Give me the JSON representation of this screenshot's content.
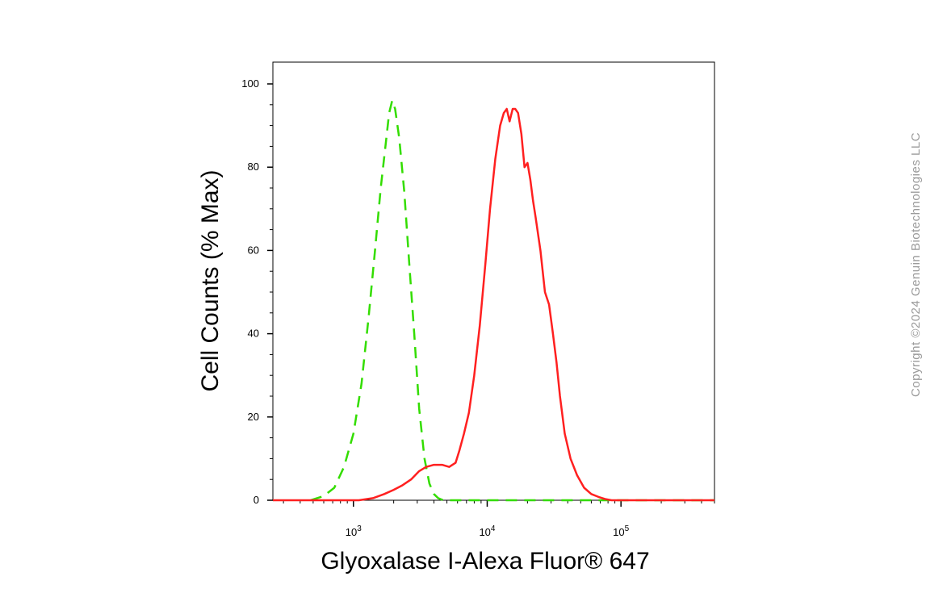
{
  "chart_data": {
    "type": "line",
    "title": "",
    "xlabel": "Glyoxalase I-Alexa Fluor® 647",
    "ylabel": "Cell Counts (% Max)",
    "x_scale": "log",
    "xlim": [
      250,
      500000
    ],
    "ylim": [
      0,
      105
    ],
    "y_ticks": [
      0,
      20,
      40,
      60,
      80,
      100
    ],
    "x_ticks": [
      {
        "value": 1000,
        "base": "10",
        "exp": "3"
      },
      {
        "value": 10000,
        "base": "10",
        "exp": "4"
      },
      {
        "value": 100000,
        "base": "10",
        "exp": "5"
      }
    ],
    "grid": false,
    "series": [
      {
        "color": "#33dd00",
        "dash": "dashed",
        "x": [
          480,
          600,
          720,
          850,
          1000,
          1150,
          1300,
          1450,
          1600,
          1750,
          1850,
          1950,
          2050,
          2200,
          2400,
          2600,
          2850,
          3100,
          3400,
          3700,
          4000,
          4300,
          4700,
          5200,
          6000,
          10000,
          50000,
          500000
        ],
        "y": [
          0,
          1,
          3,
          8,
          16,
          28,
          44,
          60,
          75,
          86,
          93,
          96,
          94,
          87,
          74,
          58,
          40,
          22,
          10,
          4,
          1.5,
          0.5,
          0,
          0,
          0,
          0,
          0,
          0
        ]
      },
      {
        "color": "#ff2020",
        "dash": "solid",
        "x": [
          250,
          900,
          1100,
          1400,
          1700,
          2000,
          2300,
          2700,
          3100,
          3500,
          4000,
          4600,
          5200,
          5800,
          6200,
          6700,
          7300,
          8000,
          8800,
          9700,
          10500,
          11500,
          12500,
          13300,
          14000,
          14700,
          15500,
          16200,
          17000,
          18000,
          19000,
          20000,
          21000,
          22000,
          23000,
          25000,
          27000,
          29000,
          31000,
          33000,
          35000,
          38000,
          42000,
          47000,
          53000,
          60000,
          68000,
          76000,
          85000,
          95000,
          110000,
          150000,
          500000
        ],
        "y": [
          0,
          0,
          0,
          0.5,
          1.5,
          2.5,
          3.5,
          5,
          7,
          8,
          8.5,
          8.5,
          8,
          9,
          12,
          16,
          21,
          30,
          42,
          57,
          70,
          82,
          90,
          93,
          94,
          91,
          94,
          94,
          93,
          88,
          80,
          81,
          77,
          72,
          68,
          60,
          50,
          47,
          40,
          33,
          25,
          16,
          10,
          6,
          3,
          1.5,
          0.8,
          0.3,
          0,
          0,
          0,
          0,
          0
        ]
      }
    ]
  },
  "copyright": "Copyright ©2024 Genuin Biotechnologies LLC"
}
